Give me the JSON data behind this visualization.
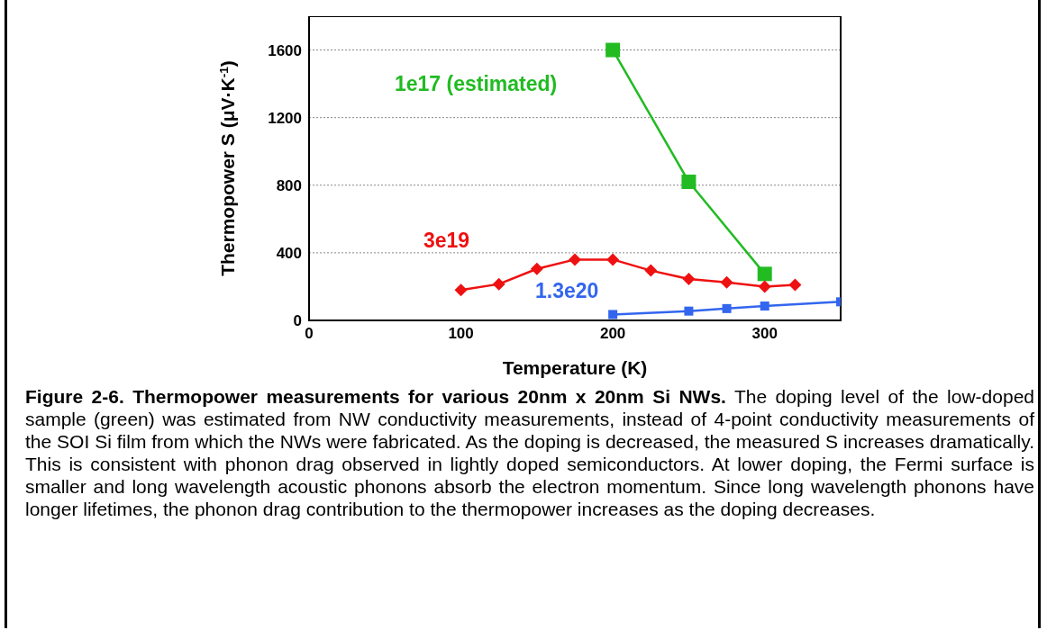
{
  "chart_data": {
    "type": "line",
    "xlabel": "Temperature (K)",
    "ylabel": "Thermopower S (μV·K$^{-1}$)",
    "xlim": [
      0,
      350
    ],
    "xticks": [
      0,
      100,
      200,
      300
    ],
    "ylim": [
      0,
      1800
    ],
    "yticks": [
      0,
      400,
      800,
      1200,
      1600
    ],
    "grid": "y",
    "legend": false,
    "series": [
      {
        "name": "1e17 (estimated)",
        "color": "#22bb22",
        "marker": "square",
        "x": [
          200,
          250,
          300
        ],
        "values": [
          1600,
          820,
          275
        ]
      },
      {
        "name": "3e19",
        "color": "#ee1111",
        "marker": "diamond",
        "x": [
          100,
          125,
          150,
          175,
          200,
          225,
          250,
          275,
          300,
          320
        ],
        "values": [
          180,
          215,
          305,
          360,
          360,
          295,
          245,
          225,
          200,
          210
        ]
      },
      {
        "name": "1.3e20",
        "color": "#3366ee",
        "marker": "square",
        "x": [
          200,
          250,
          275,
          300,
          350
        ],
        "values": [
          35,
          55,
          70,
          85,
          110
        ]
      }
    ],
    "annotations": [
      "Figure 2-6. Thermopower measurements for various 20nm x 20nm Si NWs.",
      "The doping level of the low-doped sample (green) was estimated from NW conductivity measurements, instead of 4-point conductivity measurements of the SOI Si film from which the NWs were fabricated.  As the doping is decreased, the measured S increases dramatically.  This is consistent with phonon drag observed in lightly doped semiconductors.  At lower doping, the Fermi surface is smaller and long wavelength acoustic phonons absorb the electron momentum.  Since long wavelength phonons have longer lifetimes, the phonon drag contribution to the thermopower increases as the doping decreases."
    ]
  }
}
